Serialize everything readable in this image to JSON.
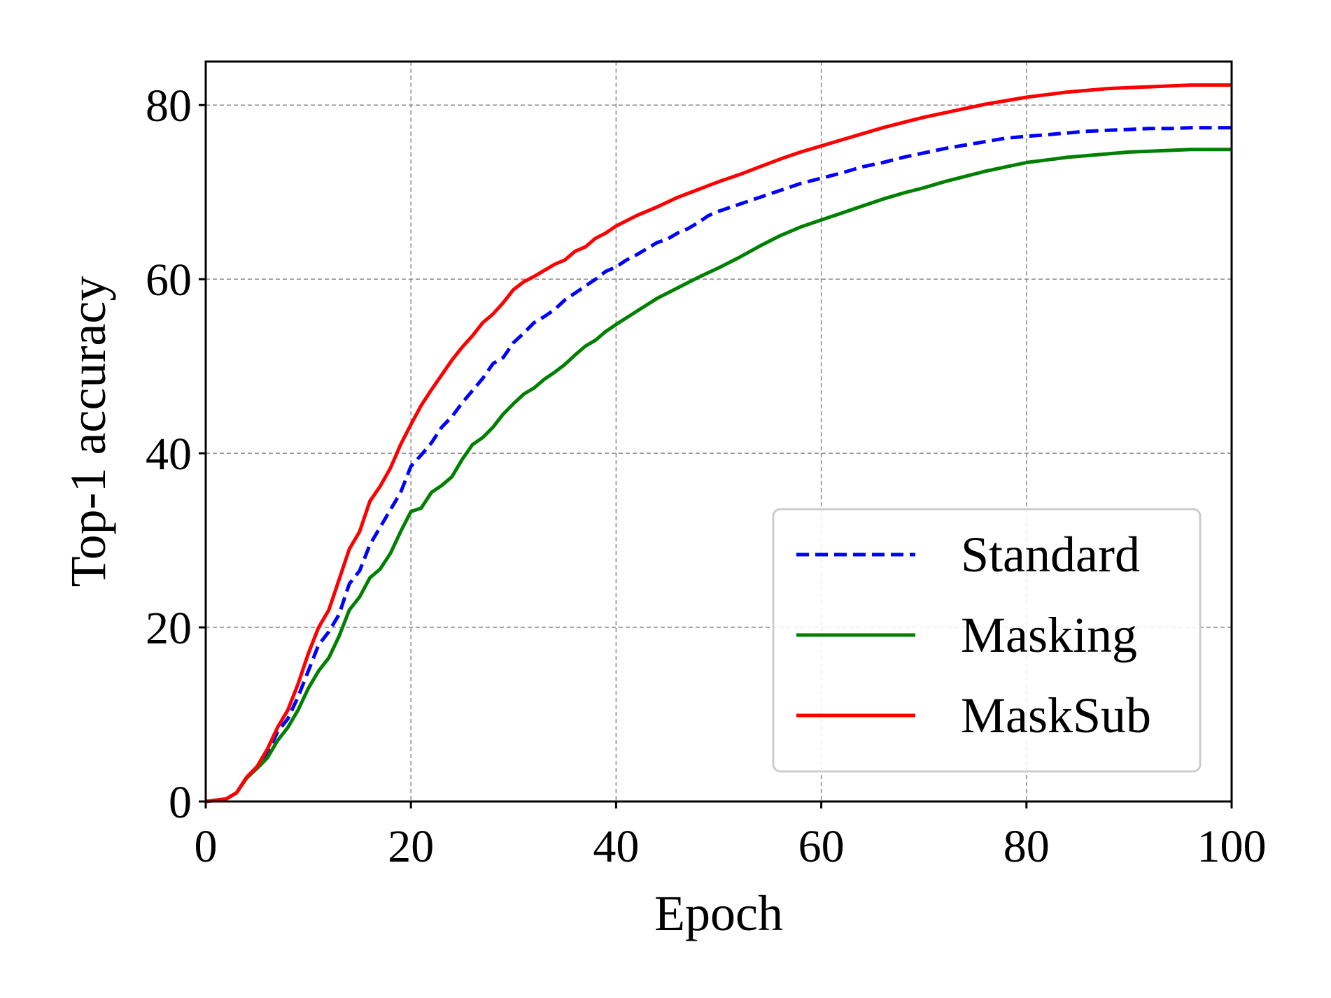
{
  "chart_data": {
    "type": "line",
    "xlabel": "Epoch",
    "ylabel": "Top-1 accuracy",
    "xlim": [
      0,
      100
    ],
    "ylim": [
      0,
      85
    ],
    "xticks": [
      0,
      20,
      40,
      60,
      80,
      100
    ],
    "yticks": [
      0,
      20,
      40,
      60,
      80
    ],
    "grid": true,
    "legend_position": "lower-right",
    "series": [
      {
        "name": "Standard",
        "color": "#0000ff",
        "dash": "dashed",
        "points": [
          [
            0,
            0
          ],
          [
            2,
            0.3
          ],
          [
            3,
            1
          ],
          [
            4,
            2.8
          ],
          [
            5,
            4
          ],
          [
            6,
            5.5
          ],
          [
            7,
            8
          ],
          [
            8,
            9.5
          ],
          [
            9,
            12
          ],
          [
            10,
            15
          ],
          [
            11,
            18
          ],
          [
            12,
            19.5
          ],
          [
            13,
            21.5
          ],
          [
            14,
            25
          ],
          [
            15,
            26.5
          ],
          [
            16,
            29.5
          ],
          [
            17,
            31.5
          ],
          [
            18,
            33.5
          ],
          [
            19,
            35.5
          ],
          [
            20,
            38.5
          ],
          [
            21,
            39.8
          ],
          [
            22,
            41.2
          ],
          [
            23,
            43
          ],
          [
            24,
            44.2
          ],
          [
            25,
            45.8
          ],
          [
            26,
            47.2
          ],
          [
            27,
            48.6
          ],
          [
            28,
            50.3
          ],
          [
            29,
            51
          ],
          [
            30,
            52.7
          ],
          [
            31,
            53.8
          ],
          [
            32,
            55
          ],
          [
            33,
            55.7
          ],
          [
            34,
            56.5
          ],
          [
            35,
            57.6
          ],
          [
            36,
            58.4
          ],
          [
            37,
            59.2
          ],
          [
            38,
            60
          ],
          [
            39,
            60.9
          ],
          [
            40,
            61.4
          ],
          [
            41,
            62.2
          ],
          [
            42,
            62.8
          ],
          [
            43,
            63.5
          ],
          [
            44,
            64.2
          ],
          [
            45,
            64.6
          ],
          [
            46,
            65.3
          ],
          [
            47,
            65.8
          ],
          [
            48,
            66.5
          ],
          [
            49,
            67.3
          ],
          [
            50,
            67.8
          ],
          [
            52,
            68.6
          ],
          [
            54,
            69.4
          ],
          [
            56,
            70.2
          ],
          [
            58,
            71
          ],
          [
            60,
            71.6
          ],
          [
            62,
            72.2
          ],
          [
            64,
            72.9
          ],
          [
            66,
            73.4
          ],
          [
            68,
            74
          ],
          [
            70,
            74.5
          ],
          [
            72,
            75
          ],
          [
            74,
            75.4
          ],
          [
            76,
            75.8
          ],
          [
            78,
            76.2
          ],
          [
            80,
            76.4
          ],
          [
            82,
            76.6
          ],
          [
            84,
            76.8
          ],
          [
            86,
            77
          ],
          [
            88,
            77.1
          ],
          [
            90,
            77.2
          ],
          [
            92,
            77.3
          ],
          [
            94,
            77.3
          ],
          [
            96,
            77.4
          ],
          [
            98,
            77.4
          ],
          [
            100,
            77.4
          ]
        ]
      },
      {
        "name": "Masking",
        "color": "#008000",
        "dash": "solid",
        "points": [
          [
            0,
            0
          ],
          [
            2,
            0.3
          ],
          [
            3,
            1
          ],
          [
            4,
            2.7
          ],
          [
            5,
            3.8
          ],
          [
            6,
            5
          ],
          [
            7,
            7
          ],
          [
            8,
            8.5
          ],
          [
            9,
            10.5
          ],
          [
            10,
            13
          ],
          [
            11,
            15
          ],
          [
            12,
            16.5
          ],
          [
            13,
            19
          ],
          [
            14,
            22
          ],
          [
            15,
            23.5
          ],
          [
            16,
            25.7
          ],
          [
            17,
            26.7
          ],
          [
            18,
            28.5
          ],
          [
            19,
            31
          ],
          [
            20,
            33.3
          ],
          [
            21,
            33.7
          ],
          [
            22,
            35.5
          ],
          [
            23,
            36.3
          ],
          [
            24,
            37.3
          ],
          [
            25,
            39.3
          ],
          [
            26,
            41
          ],
          [
            27,
            41.8
          ],
          [
            28,
            43
          ],
          [
            29,
            44.5
          ],
          [
            30,
            45.7
          ],
          [
            31,
            46.8
          ],
          [
            32,
            47.5
          ],
          [
            33,
            48.5
          ],
          [
            34,
            49.3
          ],
          [
            35,
            50.2
          ],
          [
            36,
            51.3
          ],
          [
            37,
            52.3
          ],
          [
            38,
            53
          ],
          [
            39,
            54
          ],
          [
            40,
            54.8
          ],
          [
            42,
            56.3
          ],
          [
            44,
            57.8
          ],
          [
            46,
            59
          ],
          [
            48,
            60.2
          ],
          [
            50,
            61.3
          ],
          [
            52,
            62.5
          ],
          [
            54,
            63.8
          ],
          [
            56,
            65
          ],
          [
            58,
            66
          ],
          [
            60,
            66.8
          ],
          [
            62,
            67.6
          ],
          [
            64,
            68.4
          ],
          [
            66,
            69.2
          ],
          [
            68,
            69.9
          ],
          [
            70,
            70.5
          ],
          [
            72,
            71.2
          ],
          [
            74,
            71.8
          ],
          [
            76,
            72.4
          ],
          [
            78,
            72.9
          ],
          [
            80,
            73.4
          ],
          [
            82,
            73.7
          ],
          [
            84,
            74
          ],
          [
            86,
            74.2
          ],
          [
            88,
            74.4
          ],
          [
            90,
            74.6
          ],
          [
            92,
            74.7
          ],
          [
            94,
            74.8
          ],
          [
            96,
            74.9
          ],
          [
            98,
            74.9
          ],
          [
            100,
            74.9
          ]
        ]
      },
      {
        "name": "MaskSub",
        "color": "#ff0000",
        "dash": "solid",
        "points": [
          [
            0,
            0
          ],
          [
            2,
            0.3
          ],
          [
            3,
            1
          ],
          [
            4,
            2.8
          ],
          [
            5,
            4
          ],
          [
            6,
            6
          ],
          [
            7,
            8.5
          ],
          [
            8,
            10.5
          ],
          [
            9,
            13.5
          ],
          [
            10,
            17
          ],
          [
            11,
            20
          ],
          [
            12,
            22
          ],
          [
            13,
            25.5
          ],
          [
            14,
            29
          ],
          [
            15,
            31
          ],
          [
            16,
            34.5
          ],
          [
            17,
            36.2
          ],
          [
            18,
            38.3
          ],
          [
            19,
            41
          ],
          [
            20,
            43.3
          ],
          [
            21,
            45.5
          ],
          [
            22,
            47.3
          ],
          [
            23,
            49
          ],
          [
            24,
            50.7
          ],
          [
            25,
            52.2
          ],
          [
            26,
            53.5
          ],
          [
            27,
            55
          ],
          [
            28,
            56
          ],
          [
            29,
            57.3
          ],
          [
            30,
            58.8
          ],
          [
            31,
            59.7
          ],
          [
            32,
            60.3
          ],
          [
            33,
            61
          ],
          [
            34,
            61.7
          ],
          [
            35,
            62.2
          ],
          [
            36,
            63.2
          ],
          [
            37,
            63.7
          ],
          [
            38,
            64.7
          ],
          [
            39,
            65.3
          ],
          [
            40,
            66.1
          ],
          [
            42,
            67.3
          ],
          [
            44,
            68.3
          ],
          [
            46,
            69.4
          ],
          [
            48,
            70.3
          ],
          [
            50,
            71.2
          ],
          [
            52,
            72
          ],
          [
            54,
            72.9
          ],
          [
            56,
            73.8
          ],
          [
            58,
            74.6
          ],
          [
            60,
            75.3
          ],
          [
            62,
            76
          ],
          [
            64,
            76.7
          ],
          [
            66,
            77.4
          ],
          [
            68,
            78
          ],
          [
            70,
            78.6
          ],
          [
            72,
            79.1
          ],
          [
            74,
            79.6
          ],
          [
            76,
            80.1
          ],
          [
            78,
            80.5
          ],
          [
            80,
            80.9
          ],
          [
            82,
            81.2
          ],
          [
            84,
            81.5
          ],
          [
            86,
            81.7
          ],
          [
            88,
            81.9
          ],
          [
            90,
            82
          ],
          [
            92,
            82.1
          ],
          [
            94,
            82.2
          ],
          [
            96,
            82.3
          ],
          [
            98,
            82.3
          ],
          [
            100,
            82.3
          ]
        ]
      }
    ]
  }
}
